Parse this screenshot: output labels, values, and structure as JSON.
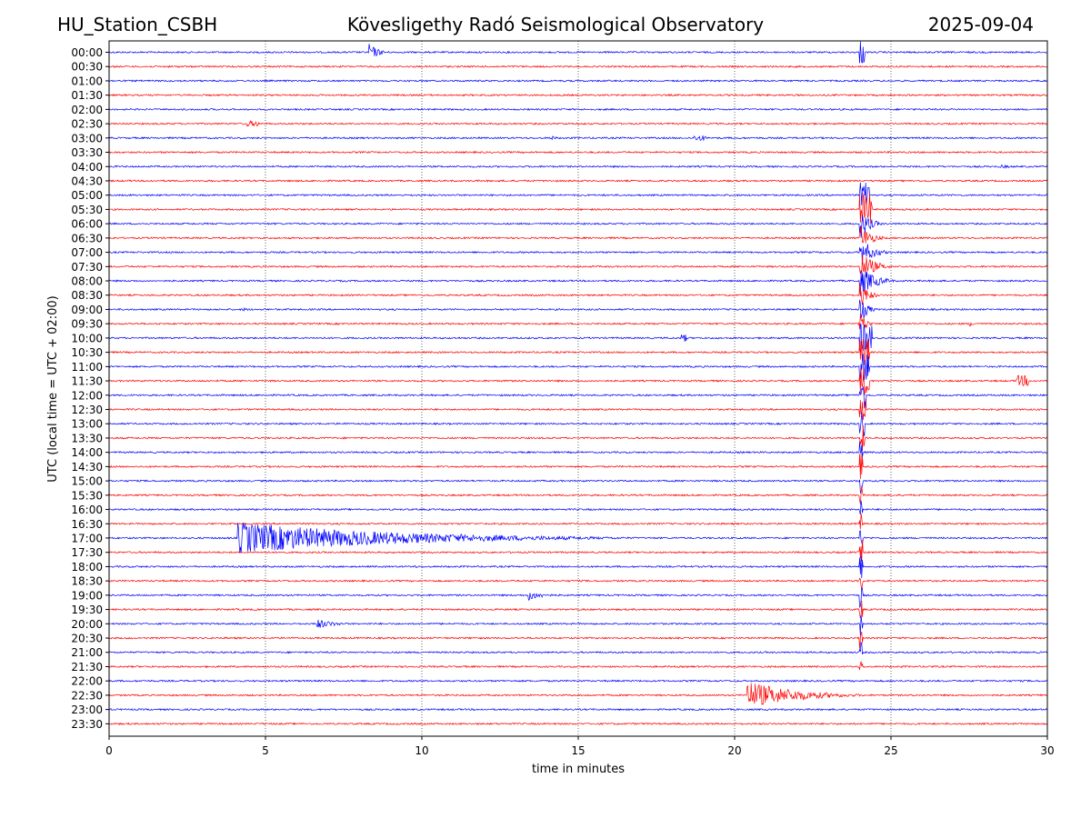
{
  "header": {
    "station": "HU_Station_CSBH",
    "observatory": "Kövesligethy Radó Seismological Observatory",
    "date": "2025-09-04"
  },
  "chart_data": {
    "type": "line",
    "title": "Kövesligethy Radó Seismological Observatory",
    "xlabel": "time in minutes",
    "ylabel": "UTC (local time = UTC + 02:00)",
    "xlim": [
      0,
      30
    ],
    "xticks": [
      0,
      5,
      10,
      15,
      20,
      25,
      30
    ],
    "grid": "vertical dotted lines at 5-minute intervals",
    "colors": {
      "even_rows": "#0000ff",
      "odd_rows": "#ff0000"
    },
    "rows": [
      "00:00",
      "00:30",
      "01:00",
      "01:30",
      "02:00",
      "02:30",
      "03:00",
      "03:30",
      "04:00",
      "04:30",
      "05:00",
      "05:30",
      "06:00",
      "06:30",
      "07:00",
      "07:30",
      "08:00",
      "08:30",
      "09:00",
      "09:30",
      "10:00",
      "10:30",
      "11:00",
      "11:30",
      "12:00",
      "12:30",
      "13:00",
      "13:30",
      "14:00",
      "14:30",
      "15:00",
      "15:30",
      "16:00",
      "16:30",
      "17:00",
      "17:30",
      "18:00",
      "18:30",
      "19:00",
      "19:30",
      "20:00",
      "20:30",
      "21:00",
      "21:30",
      "22:00",
      "22:30",
      "23:00",
      "23:30"
    ],
    "events": [
      {
        "row": "00:00",
        "start": 8.3,
        "duration": 0.8,
        "amplitude": 10
      },
      {
        "row": "00:00",
        "start": 24.0,
        "duration": 0.15,
        "amplitude": 14
      },
      {
        "row": "02:30",
        "start": 4.4,
        "duration": 0.4,
        "amplitude": 3
      },
      {
        "row": "03:00",
        "start": 14.1,
        "duration": 0.6,
        "amplitude": 3
      },
      {
        "row": "03:00",
        "start": 18.7,
        "duration": 0.4,
        "amplitude": 3
      },
      {
        "row": "04:00",
        "start": 28.5,
        "duration": 1.5,
        "amplitude": 2
      },
      {
        "row": "05:00",
        "start": 24.0,
        "duration": 0.3,
        "amplitude": 14
      },
      {
        "row": "05:30",
        "start": 24.0,
        "duration": 0.4,
        "amplitude": 18
      },
      {
        "row": "06:00",
        "start": 24.0,
        "duration": 0.8,
        "amplitude": 18
      },
      {
        "row": "06:30",
        "start": 24.0,
        "duration": 0.9,
        "amplitude": 16
      },
      {
        "row": "07:00",
        "start": 24.0,
        "duration": 1.0,
        "amplitude": 18
      },
      {
        "row": "07:30",
        "start": 24.0,
        "duration": 1.1,
        "amplitude": 18
      },
      {
        "row": "08:00",
        "start": 24.0,
        "duration": 1.2,
        "amplitude": 18
      },
      {
        "row": "08:30",
        "start": 24.0,
        "duration": 0.7,
        "amplitude": 16
      },
      {
        "row": "09:00",
        "start": 4.3,
        "duration": 0.8,
        "amplitude": 2
      },
      {
        "row": "09:00",
        "start": 24.0,
        "duration": 0.6,
        "amplitude": 16
      },
      {
        "row": "09:30",
        "start": 24.0,
        "duration": 0.5,
        "amplitude": 16
      },
      {
        "row": "09:30",
        "start": 27.5,
        "duration": 0.5,
        "amplitude": 3
      },
      {
        "row": "10:00",
        "start": 18.3,
        "duration": 0.2,
        "amplitude": 4
      },
      {
        "row": "10:00",
        "start": 24.0,
        "duration": 0.4,
        "amplitude": 16
      },
      {
        "row": "10:30",
        "start": 24.0,
        "duration": 0.3,
        "amplitude": 16
      },
      {
        "row": "11:00",
        "start": 24.0,
        "duration": 0.3,
        "amplitude": 16
      },
      {
        "row": "11:30",
        "start": 24.0,
        "duration": 0.3,
        "amplitude": 16
      },
      {
        "row": "11:30",
        "start": 29.0,
        "duration": 0.4,
        "amplitude": 6
      },
      {
        "row": "12:00",
        "start": 24.0,
        "duration": 0.2,
        "amplitude": 16
      },
      {
        "row": "12:30",
        "start": 24.0,
        "duration": 0.2,
        "amplitude": 14
      },
      {
        "row": "13:00",
        "start": 7.5,
        "duration": 0.5,
        "amplitude": 2
      },
      {
        "row": "13:00",
        "start": 24.0,
        "duration": 0.15,
        "amplitude": 14
      },
      {
        "row": "13:30",
        "start": 24.0,
        "duration": 0.15,
        "amplitude": 14
      },
      {
        "row": "14:00",
        "start": 24.0,
        "duration": 0.1,
        "amplitude": 14
      },
      {
        "row": "14:30",
        "start": 24.0,
        "duration": 0.1,
        "amplitude": 14
      },
      {
        "row": "15:00",
        "start": 24.0,
        "duration": 0.1,
        "amplitude": 14
      },
      {
        "row": "15:30",
        "start": 24.0,
        "duration": 0.1,
        "amplitude": 14
      },
      {
        "row": "16:00",
        "start": 24.0,
        "duration": 0.1,
        "amplitude": 14
      },
      {
        "row": "16:30",
        "start": 24.0,
        "duration": 0.1,
        "amplitude": 14
      },
      {
        "row": "17:00",
        "start": 4.1,
        "duration": 13.0,
        "amplitude": 18
      },
      {
        "row": "17:00",
        "start": 24.0,
        "duration": 0.1,
        "amplitude": 14
      },
      {
        "row": "17:30",
        "start": 24.0,
        "duration": 0.1,
        "amplitude": 14
      },
      {
        "row": "18:00",
        "start": 9.7,
        "duration": 0.6,
        "amplitude": 2
      },
      {
        "row": "18:00",
        "start": 24.0,
        "duration": 0.1,
        "amplitude": 14
      },
      {
        "row": "18:30",
        "start": 24.0,
        "duration": 0.1,
        "amplitude": 14
      },
      {
        "row": "19:00",
        "start": 13.4,
        "duration": 1.2,
        "amplitude": 6
      },
      {
        "row": "19:00",
        "start": 24.0,
        "duration": 0.1,
        "amplitude": 14
      },
      {
        "row": "19:30",
        "start": 24.0,
        "duration": 0.1,
        "amplitude": 14
      },
      {
        "row": "20:00",
        "start": 6.6,
        "duration": 1.5,
        "amplitude": 6
      },
      {
        "row": "20:00",
        "start": 24.0,
        "duration": 0.1,
        "amplitude": 14
      },
      {
        "row": "20:30",
        "start": 24.0,
        "duration": 0.1,
        "amplitude": 12
      },
      {
        "row": "21:00",
        "start": 24.0,
        "duration": 0.1,
        "amplitude": 12
      },
      {
        "row": "21:30",
        "start": 24.0,
        "duration": 0.1,
        "amplitude": 8
      },
      {
        "row": "21:30",
        "start": 26.2,
        "duration": 0.5,
        "amplitude": 2
      },
      {
        "row": "22:30",
        "start": 20.4,
        "duration": 4.0,
        "amplitude": 16
      }
    ]
  }
}
